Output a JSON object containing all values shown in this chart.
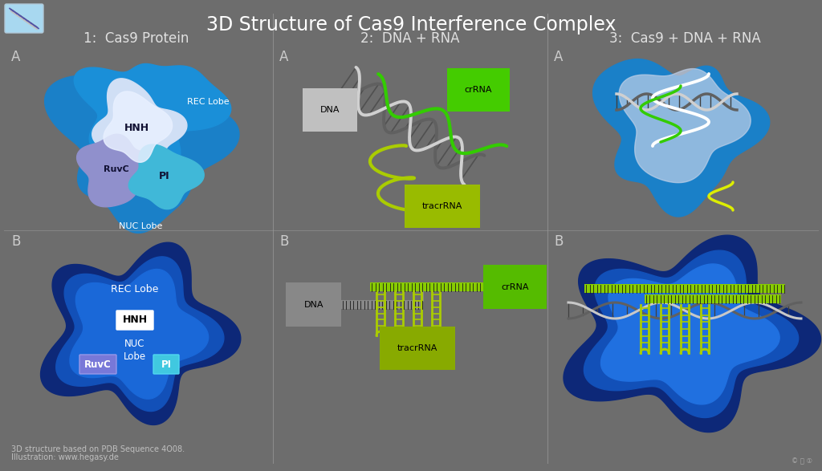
{
  "bg_color": "#6d6d6d",
  "title": "3D Structure of Cas9 Interference Complex",
  "title_color": "#ffffff",
  "title_fontsize": 17,
  "subtitle1": "1:  Cas9 Protein",
  "subtitle2": "2:  DNA + RNA",
  "subtitle3": "3:  Cas9 + DNA + RNA",
  "subtitle_color": "#e0e0e0",
  "subtitle_fontsize": 12,
  "label_color": "#cccccc",
  "label_fontsize": 12,
  "footer1": "3D structure based on PDB Sequence 4O08.",
  "footer2": "Illustration: www.hegasy.de",
  "footer_color": "#c0c0c0",
  "footer_fontsize": 7,
  "divider_color": "#999999",
  "crna_color": "#33cc00",
  "tracrna_color": "#aacc00",
  "dna_gray": "#888888",
  "dna_light": "#cccccc",
  "dna_dark": "#555555"
}
